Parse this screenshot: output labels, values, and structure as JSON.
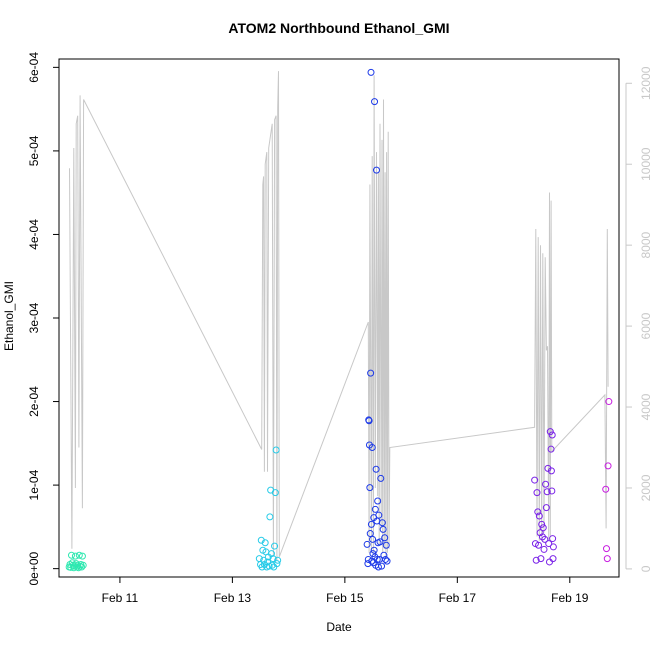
{
  "chart_data": {
    "type": "scatter",
    "title": "ATOM2 Northbound Ethanol_GMI",
    "xlabel": "Date",
    "ylabel": "Ethanol_GMI",
    "xlim": [
      "2017-02-09T22:00",
      "2017-02-19T21:00"
    ],
    "ylim": [
      -1e-05,
      0.00061
    ],
    "y2lim": [
      -200,
      12600
    ],
    "xticks": [
      {
        "label": "Feb 11",
        "value": "2017-02-11"
      },
      {
        "label": "Feb 13",
        "value": "2017-02-13"
      },
      {
        "label": "Feb 15",
        "value": "2017-02-15"
      },
      {
        "label": "Feb 17",
        "value": "2017-02-17"
      },
      {
        "label": "Feb 19",
        "value": "2017-02-19"
      }
    ],
    "yticks": [
      {
        "label": "0e+00",
        "value": 0
      },
      {
        "label": "1e-04",
        "value": 0.0001
      },
      {
        "label": "2e-04",
        "value": 0.0002
      },
      {
        "label": "3e-04",
        "value": 0.0003
      },
      {
        "label": "4e-04",
        "value": 0.0004
      },
      {
        "label": "5e-04",
        "value": 0.0005
      },
      {
        "label": "6e-04",
        "value": 0.0006
      }
    ],
    "y2ticks": [
      {
        "label": "0",
        "value": 0
      },
      {
        "label": "2000",
        "value": 2000
      },
      {
        "label": "4000",
        "value": 4000
      },
      {
        "label": "6000",
        "value": 6000
      },
      {
        "label": "8000",
        "value": 8000
      },
      {
        "label": "10000",
        "value": 10000
      },
      {
        "label": "12000",
        "value": 12000
      }
    ],
    "grid": false,
    "altitude_color": "#c8c8c8",
    "flight_colors": [
      "#2ee8b0",
      "#27cbe8",
      "#1d3ae8",
      "#7a22e8",
      "#c81ee0"
    ],
    "altitude_line": [
      [
        "2017-02-10T02:30",
        9900
      ],
      [
        "2017-02-10T03:30",
        500
      ],
      [
        "2017-02-10T04:20",
        10400
      ],
      [
        "2017-02-10T05:00",
        2000
      ],
      [
        "2017-02-10T05:20",
        11000
      ],
      [
        "2017-02-10T06:00",
        11200
      ],
      [
        "2017-02-10T06:30",
        3000
      ],
      [
        "2017-02-10T07:00",
        11700
      ],
      [
        "2017-02-10T08:00",
        1500
      ],
      [
        "2017-02-10T08:30",
        11600
      ],
      [
        "2017-02-13T12:30",
        2950
      ],
      [
        "2017-02-13T13:00",
        9500
      ],
      [
        "2017-02-13T13:20",
        9700
      ],
      [
        "2017-02-13T13:40",
        2400
      ],
      [
        "2017-02-13T14:00",
        10000
      ],
      [
        "2017-02-13T14:40",
        10300
      ],
      [
        "2017-02-13T15:00",
        2400
      ],
      [
        "2017-02-13T15:30",
        10400
      ],
      [
        "2017-02-13T17:00",
        11000
      ],
      [
        "2017-02-13T17:30",
        300
      ],
      [
        "2017-02-13T18:00",
        11100
      ],
      [
        "2017-02-13T18:40",
        11200
      ],
      [
        "2017-02-13T19:00",
        200
      ],
      [
        "2017-02-13T19:20",
        11400
      ],
      [
        "2017-02-13T19:40",
        12300
      ],
      [
        "2017-02-13T20:00",
        300
      ],
      [
        "2017-02-15T10:00",
        6100
      ],
      [
        "2017-02-15T10:20",
        400
      ],
      [
        "2017-02-15T10:40",
        9500
      ],
      [
        "2017-02-15T11:20",
        400
      ],
      [
        "2017-02-15T11:40",
        10200
      ],
      [
        "2017-02-15T12:10",
        400
      ],
      [
        "2017-02-15T12:30",
        12200
      ],
      [
        "2017-02-15T13:00",
        2000
      ],
      [
        "2017-02-15T13:30",
        10300
      ],
      [
        "2017-02-15T14:00",
        1800
      ],
      [
        "2017-02-15T14:20",
        9800
      ],
      [
        "2017-02-15T14:40",
        600
      ],
      [
        "2017-02-15T15:00",
        11000
      ],
      [
        "2017-02-15T15:30",
        1000
      ],
      [
        "2017-02-15T15:50",
        10600
      ],
      [
        "2017-02-15T16:10",
        400
      ],
      [
        "2017-02-15T16:30",
        11600
      ],
      [
        "2017-02-15T16:50",
        500
      ],
      [
        "2017-02-15T17:10",
        9800
      ],
      [
        "2017-02-15T17:30",
        300
      ],
      [
        "2017-02-15T17:50",
        10300
      ],
      [
        "2017-02-15T18:10",
        400
      ],
      [
        "2017-02-15T18:30",
        10800
      ],
      [
        "2017-02-15T18:50",
        500
      ],
      [
        "2017-02-15T19:10",
        3000
      ],
      [
        "2017-02-18T09:00",
        3500
      ],
      [
        "2017-02-18T09:30",
        8400
      ],
      [
        "2017-02-18T10:00",
        800
      ],
      [
        "2017-02-18T10:30",
        8200
      ],
      [
        "2017-02-18T11:00",
        700
      ],
      [
        "2017-02-18T11:30",
        8000
      ],
      [
        "2017-02-18T12:00",
        700
      ],
      [
        "2017-02-18T12:30",
        7800
      ],
      [
        "2017-02-18T13:00",
        900
      ],
      [
        "2017-02-18T13:30",
        7700
      ],
      [
        "2017-02-18T14:00",
        5400
      ],
      [
        "2017-02-18T14:30",
        5500
      ],
      [
        "2017-02-18T15:00",
        700
      ],
      [
        "2017-02-18T15:20",
        9300
      ],
      [
        "2017-02-18T15:40",
        800
      ],
      [
        "2017-02-18T16:00",
        9100
      ],
      [
        "2017-02-18T16:20",
        2900
      ],
      [
        "2017-02-19T15:00",
        4300
      ],
      [
        "2017-02-19T15:30",
        1000
      ],
      [
        "2017-02-19T16:00",
        8400
      ],
      [
        "2017-02-19T16:20",
        4500
      ]
    ],
    "series": [
      {
        "values": [
          [
            "2017-02-10T02:20",
            2e-06
          ],
          [
            "2017-02-10T02:40",
            5e-06
          ],
          [
            "2017-02-10T03:00",
            1.5e-06
          ],
          [
            "2017-02-10T03:20",
            1.6e-05
          ],
          [
            "2017-02-10T03:40",
            7e-06
          ],
          [
            "2017-02-10T04:00",
            4e-06
          ],
          [
            "2017-02-10T04:20",
            1e-06
          ],
          [
            "2017-02-10T04:40",
            3e-06
          ],
          [
            "2017-02-10T05:00",
            1.5e-05
          ],
          [
            "2017-02-10T05:20",
            6e-06
          ],
          [
            "2017-02-10T05:40",
            2e-06
          ],
          [
            "2017-02-10T06:00",
            4e-06
          ],
          [
            "2017-02-10T06:20",
            1e-06
          ],
          [
            "2017-02-10T06:40",
            1.6e-05
          ],
          [
            "2017-02-10T07:00",
            3e-06
          ],
          [
            "2017-02-10T07:20",
            5e-06
          ],
          [
            "2017-02-10T07:40",
            2e-06
          ],
          [
            "2017-02-10T08:00",
            1.5e-05
          ],
          [
            "2017-02-10T08:20",
            4e-06
          ]
        ]
      },
      {
        "values": [
          [
            "2017-02-13T11:30",
            1.2e-05
          ],
          [
            "2017-02-13T12:00",
            5e-06
          ],
          [
            "2017-02-13T12:20",
            3.4e-05
          ],
          [
            "2017-02-13T12:40",
            2e-06
          ],
          [
            "2017-02-13T13:00",
            2.2e-05
          ],
          [
            "2017-02-13T13:20",
            1e-05
          ],
          [
            "2017-02-13T13:40",
            5e-06
          ],
          [
            "2017-02-13T14:00",
            3.1e-05
          ],
          [
            "2017-02-13T14:20",
            2e-05
          ],
          [
            "2017-02-13T14:40",
            2e-06
          ],
          [
            "2017-02-13T15:00",
            8e-06
          ],
          [
            "2017-02-13T15:20",
            1.4e-05
          ],
          [
            "2017-02-13T15:40",
            3e-06
          ],
          [
            "2017-02-13T16:00",
            6.2e-05
          ],
          [
            "2017-02-13T16:20",
            9.4e-05
          ],
          [
            "2017-02-13T16:40",
            1.8e-05
          ],
          [
            "2017-02-13T17:00",
            4e-06
          ],
          [
            "2017-02-13T17:20",
            1.2e-05
          ],
          [
            "2017-02-13T17:40",
            2e-06
          ],
          [
            "2017-02-13T18:00",
            2.7e-05
          ],
          [
            "2017-02-13T18:20",
            9.1e-05
          ],
          [
            "2017-02-13T18:40",
            0.000142
          ],
          [
            "2017-02-13T19:00",
            6e-06
          ],
          [
            "2017-02-13T19:20",
            1e-05
          ]
        ]
      },
      {
        "values": [
          [
            "2017-02-15T09:30",
            2.9e-05
          ],
          [
            "2017-02-15T09:50",
            6e-06
          ],
          [
            "2017-02-15T10:00",
            1.1e-05
          ],
          [
            "2017-02-15T10:10",
            0.000178
          ],
          [
            "2017-02-15T10:20",
            0.000177
          ],
          [
            "2017-02-15T10:30",
            0.000148
          ],
          [
            "2017-02-15T10:40",
            9.7e-05
          ],
          [
            "2017-02-15T10:50",
            4.2e-05
          ],
          [
            "2017-02-15T11:00",
            0.000234
          ],
          [
            "2017-02-15T11:10",
            0.000594
          ],
          [
            "2017-02-15T11:20",
            5.3e-05
          ],
          [
            "2017-02-15T11:30",
            9e-06
          ],
          [
            "2017-02-15T11:40",
            0.000145
          ],
          [
            "2017-02-15T11:50",
            3.5e-05
          ],
          [
            "2017-02-15T12:00",
            1.8e-05
          ],
          [
            "2017-02-15T12:10",
            7e-06
          ],
          [
            "2017-02-15T12:20",
            6.1e-05
          ],
          [
            "2017-02-15T12:30",
            2.2e-05
          ],
          [
            "2017-02-15T12:40",
            0.000559
          ],
          [
            "2017-02-15T12:50",
            1.4e-05
          ],
          [
            "2017-02-15T13:00",
            7.1e-05
          ],
          [
            "2017-02-15T13:10",
            4e-06
          ],
          [
            "2017-02-15T13:20",
            0.000119
          ],
          [
            "2017-02-15T13:30",
            0.000477
          ],
          [
            "2017-02-15T13:40",
            5.7e-05
          ],
          [
            "2017-02-15T13:50",
            1.1e-05
          ],
          [
            "2017-02-15T14:00",
            8.1e-05
          ],
          [
            "2017-02-15T14:10",
            3.1e-05
          ],
          [
            "2017-02-15T14:20",
            2e-06
          ],
          [
            "2017-02-15T14:30",
            6.4e-05
          ],
          [
            "2017-02-15T14:40",
            1.1e-05
          ],
          [
            "2017-02-15T15:00",
            3.2e-05
          ],
          [
            "2017-02-15T15:20",
            0.000108
          ],
          [
            "2017-02-15T15:40",
            3e-06
          ],
          [
            "2017-02-15T16:00",
            5.5e-05
          ],
          [
            "2017-02-15T16:20",
            4.7e-05
          ],
          [
            "2017-02-15T16:40",
            1.6e-05
          ],
          [
            "2017-02-15T17:00",
            3.7e-05
          ],
          [
            "2017-02-15T17:20",
            1.1e-05
          ],
          [
            "2017-02-15T17:40",
            2.8e-05
          ],
          [
            "2017-02-15T18:00",
            9e-06
          ]
        ]
      },
      {
        "values": [
          [
            "2017-02-18T09:00",
            0.000106
          ],
          [
            "2017-02-18T09:20",
            3e-05
          ],
          [
            "2017-02-18T09:40",
            1e-05
          ],
          [
            "2017-02-18T10:00",
            9.1e-05
          ],
          [
            "2017-02-18T10:20",
            6.8e-05
          ],
          [
            "2017-02-18T10:40",
            2.8e-05
          ],
          [
            "2017-02-18T11:00",
            6.3e-05
          ],
          [
            "2017-02-18T11:20",
            4.3e-05
          ],
          [
            "2017-02-18T11:40",
            1.2e-05
          ],
          [
            "2017-02-18T12:00",
            5.3e-05
          ],
          [
            "2017-02-18T12:20",
            3.8e-05
          ],
          [
            "2017-02-18T12:40",
            4.9e-05
          ],
          [
            "2017-02-18T13:00",
            2.3e-05
          ],
          [
            "2017-02-18T13:20",
            3.5e-05
          ],
          [
            "2017-02-18T13:40",
            0.000101
          ],
          [
            "2017-02-18T14:00",
            7.3e-05
          ],
          [
            "2017-02-18T14:20",
            9.2e-05
          ],
          [
            "2017-02-18T14:40",
            0.00012
          ],
          [
            "2017-02-18T15:00",
            3e-05
          ],
          [
            "2017-02-18T15:20",
            8e-06
          ],
          [
            "2017-02-18T15:40",
            0.000164
          ],
          [
            "2017-02-18T16:00",
            0.000143
          ],
          [
            "2017-02-18T16:10",
            0.000117
          ],
          [
            "2017-02-18T16:20",
            9.3e-05
          ],
          [
            "2017-02-18T16:30",
            0.00016
          ],
          [
            "2017-02-18T16:40",
            3.6e-05
          ],
          [
            "2017-02-18T16:50",
            1.2e-05
          ],
          [
            "2017-02-18T17:00",
            2.6e-05
          ]
        ]
      },
      {
        "values": [
          [
            "2017-02-19T15:20",
            9.5e-05
          ],
          [
            "2017-02-19T15:40",
            2.4e-05
          ],
          [
            "2017-02-19T16:00",
            1.2e-05
          ],
          [
            "2017-02-19T16:20",
            0.000123
          ],
          [
            "2017-02-19T16:40",
            0.0002
          ]
        ]
      }
    ]
  }
}
